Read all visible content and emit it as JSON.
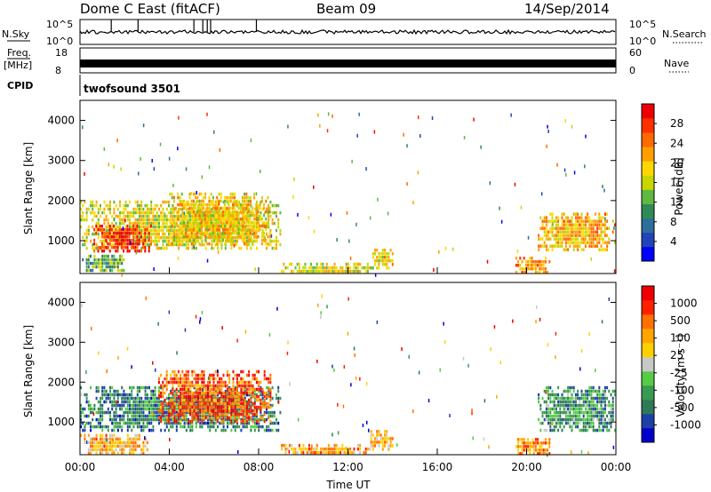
{
  "header": {
    "radar": "Dome C East (fitACF)",
    "beam": "Beam 09",
    "date": "14/Sep/2014"
  },
  "summary": {
    "nsky_label": "N.Sky",
    "nsky_ticks": [
      "10^5",
      "10^0"
    ],
    "nsearch_label": "N.Search",
    "nsearch_ticks": [
      "10^5",
      "10^0"
    ],
    "freq_label": "Freq.",
    "freq_unit": "[MHz]",
    "freq_ticks": [
      "18",
      "8"
    ],
    "nave_label": "Nave",
    "nave_ticks": [
      "60",
      "0"
    ],
    "cpid_label": "CPID",
    "cpid_value": "twofsound 3501"
  },
  "chart_data": [
    {
      "type": "heatmap",
      "name": "power-panel",
      "ylabel": "Slant Range [km]",
      "yticks": [
        "4000",
        "3000",
        "2000",
        "1000"
      ],
      "ylim": [
        180,
        4500
      ],
      "xlim": [
        0,
        24
      ],
      "colorbar_label": "Power [dB]",
      "colorbar_ticks": [
        "28",
        "24",
        "20",
        "16",
        "12",
        "8",
        "4"
      ],
      "colors": [
        "#0000ff",
        "#2244bb",
        "#2e6e9a",
        "#2e8b57",
        "#5fb840",
        "#c8d600",
        "#ffd700",
        "#ffa000",
        "#ff6a00",
        "#ff3000",
        "#ee0000"
      ],
      "regions": [
        {
          "t": [
            0.0,
            9.0
          ],
          "r": [
            800,
            2000
          ],
          "level": 0.55
        },
        {
          "t": [
            0.6,
            3.2
          ],
          "r": [
            700,
            1400
          ],
          "level": 0.9
        },
        {
          "t": [
            4.0,
            8.5
          ],
          "r": [
            900,
            2200
          ],
          "level": 0.6
        },
        {
          "t": [
            0.0,
            2.0
          ],
          "r": [
            250,
            650
          ],
          "level": 0.4
        },
        {
          "t": [
            9.0,
            13.0
          ],
          "r": [
            200,
            450
          ],
          "level": 0.55
        },
        {
          "t": [
            13.0,
            14.0
          ],
          "r": [
            350,
            800
          ],
          "level": 0.6
        },
        {
          "t": [
            19.5,
            21.0
          ],
          "r": [
            200,
            600
          ],
          "level": 0.7
        },
        {
          "t": [
            20.5,
            24.0
          ],
          "r": [
            800,
            1700
          ],
          "level": 0.65
        }
      ]
    },
    {
      "type": "heatmap",
      "name": "velocity-panel",
      "ylabel": "Slant Range [km]",
      "yticks": [
        "4000",
        "3000",
        "2000",
        "1000"
      ],
      "ylim": [
        180,
        4500
      ],
      "xlim": [
        0,
        24
      ],
      "xticks": [
        "00:00",
        "04:00",
        "08:00",
        "12:00",
        "16:00",
        "20:00",
        "00:00"
      ],
      "xlabel": "Time UT",
      "colorbar_label": "Velocity [m s⁻¹]",
      "colorbar_ticks": [
        "1000",
        "500",
        "100",
        "25",
        "-25",
        "-100",
        "-500",
        "-1000"
      ],
      "colors": [
        "#0000cc",
        "#1e3fa8",
        "#2e7a57",
        "#3a9a50",
        "#55cc44",
        "#c8c8c8",
        "#ffd000",
        "#ffa500",
        "#ff7000",
        "#ff2000",
        "#ee0000"
      ],
      "regions": [
        {
          "t": [
            0.0,
            9.0
          ],
          "r": [
            800,
            1900
          ],
          "level": 0.25
        },
        {
          "t": [
            3.5,
            8.5
          ],
          "r": [
            1000,
            2300
          ],
          "level": 0.8
        },
        {
          "t": [
            0.0,
            3.0
          ],
          "r": [
            250,
            700
          ],
          "level": 0.65
        },
        {
          "t": [
            9.0,
            13.0
          ],
          "r": [
            200,
            450
          ],
          "level": 0.68
        },
        {
          "t": [
            13.0,
            14.0
          ],
          "r": [
            350,
            800
          ],
          "level": 0.62
        },
        {
          "t": [
            19.5,
            21.0
          ],
          "r": [
            200,
            600
          ],
          "level": 0.72
        },
        {
          "t": [
            20.5,
            24.0
          ],
          "r": [
            800,
            1900
          ],
          "level": 0.3
        }
      ]
    }
  ]
}
